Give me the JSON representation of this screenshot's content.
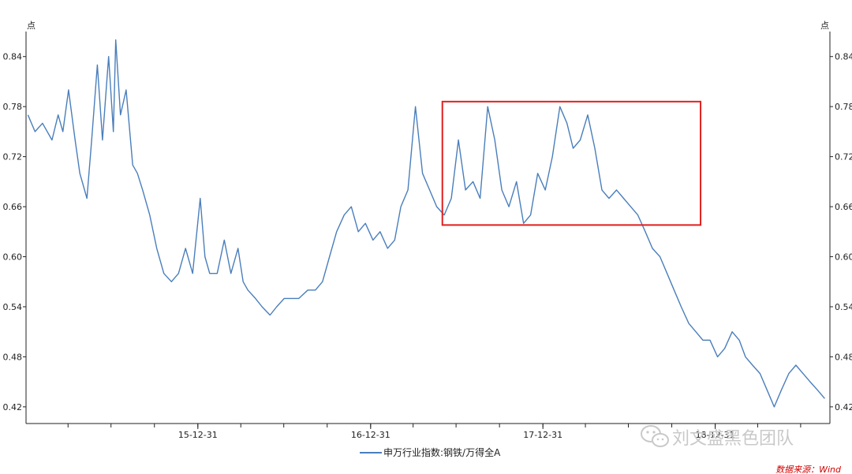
{
  "chart_data": {
    "type": "line",
    "y_unit_left": "点",
    "y_unit_right": "点",
    "yticks": [
      "0.84",
      "0.78",
      "0.72",
      "0.66",
      "0.60",
      "0.54",
      "0.48",
      "0.42"
    ],
    "ylim": [
      0.4,
      0.87
    ],
    "xticks": [
      "15-12-31",
      "16-12-31",
      "17-12-31",
      "18-12-31"
    ],
    "xlim": [
      "2015-01-01",
      "2019-08-31"
    ],
    "grid": false,
    "legend_position": "bottom-center",
    "series": [
      {
        "name": "申万行业指数:钢铁/万得全A",
        "color": "#4a7ebb",
        "x": [
          "2015-01-05",
          "2015-01-20",
          "2015-02-05",
          "2015-02-25",
          "2015-03-10",
          "2015-03-20",
          "2015-04-01",
          "2015-04-15",
          "2015-04-25",
          "2015-05-10",
          "2015-05-20",
          "2015-06-01",
          "2015-06-12",
          "2015-06-25",
          "2015-07-05",
          "2015-07-10",
          "2015-07-20",
          "2015-08-01",
          "2015-08-15",
          "2015-08-25",
          "2015-09-05",
          "2015-09-20",
          "2015-10-05",
          "2015-10-20",
          "2015-11-05",
          "2015-11-20",
          "2015-12-05",
          "2015-12-20",
          "2016-01-05",
          "2016-01-15",
          "2016-01-25",
          "2016-02-10",
          "2016-02-25",
          "2016-03-10",
          "2016-03-25",
          "2016-04-05",
          "2016-04-15",
          "2016-05-01",
          "2016-05-15",
          "2016-06-01",
          "2016-06-15",
          "2016-07-01",
          "2016-07-15",
          "2016-08-01",
          "2016-08-20",
          "2016-09-05",
          "2016-09-20",
          "2016-10-05",
          "2016-10-20",
          "2016-11-05",
          "2016-11-20",
          "2016-12-05",
          "2016-12-20",
          "2017-01-05",
          "2017-01-20",
          "2017-02-05",
          "2017-02-20",
          "2017-03-05",
          "2017-03-20",
          "2017-04-05",
          "2017-04-20",
          "2017-05-05",
          "2017-05-20",
          "2017-06-05",
          "2017-06-20",
          "2017-07-05",
          "2017-07-20",
          "2017-08-05",
          "2017-08-20",
          "2017-09-05",
          "2017-09-20",
          "2017-10-05",
          "2017-10-20",
          "2017-11-05",
          "2017-11-20",
          "2017-12-05",
          "2017-12-20",
          "2018-01-05",
          "2018-01-20",
          "2018-02-05",
          "2018-02-20",
          "2018-03-05",
          "2018-03-20",
          "2018-04-05",
          "2018-04-20",
          "2018-05-05",
          "2018-05-20",
          "2018-06-05",
          "2018-06-20",
          "2018-07-05",
          "2018-07-20",
          "2018-08-05",
          "2018-08-20",
          "2018-09-05",
          "2018-09-20",
          "2018-10-05",
          "2018-10-20",
          "2018-11-05",
          "2018-11-20",
          "2018-12-05",
          "2018-12-20",
          "2019-01-05",
          "2019-01-20",
          "2019-02-05",
          "2019-02-20",
          "2019-03-05",
          "2019-03-20",
          "2019-04-05",
          "2019-04-20",
          "2019-05-05",
          "2019-05-20",
          "2019-06-05",
          "2019-06-20",
          "2019-07-05",
          "2019-07-20",
          "2019-08-05",
          "2019-08-20"
        ],
        "y": [
          0.77,
          0.75,
          0.76,
          0.74,
          0.77,
          0.75,
          0.8,
          0.74,
          0.7,
          0.67,
          0.74,
          0.83,
          0.74,
          0.84,
          0.75,
          0.86,
          0.77,
          0.8,
          0.71,
          0.7,
          0.68,
          0.65,
          0.61,
          0.58,
          0.57,
          0.58,
          0.61,
          0.58,
          0.67,
          0.6,
          0.58,
          0.58,
          0.62,
          0.58,
          0.61,
          0.57,
          0.56,
          0.55,
          0.54,
          0.53,
          0.54,
          0.55,
          0.55,
          0.55,
          0.56,
          0.56,
          0.57,
          0.6,
          0.63,
          0.65,
          0.66,
          0.63,
          0.64,
          0.62,
          0.63,
          0.61,
          0.62,
          0.66,
          0.68,
          0.78,
          0.7,
          0.68,
          0.66,
          0.65,
          0.67,
          0.74,
          0.68,
          0.69,
          0.67,
          0.78,
          0.74,
          0.68,
          0.66,
          0.69,
          0.64,
          0.65,
          0.7,
          0.68,
          0.72,
          0.78,
          0.76,
          0.73,
          0.74,
          0.77,
          0.73,
          0.68,
          0.67,
          0.68,
          0.67,
          0.66,
          0.65,
          0.63,
          0.61,
          0.6,
          0.58,
          0.56,
          0.54,
          0.52,
          0.51,
          0.5,
          0.5,
          0.48,
          0.49,
          0.51,
          0.5,
          0.48,
          0.47,
          0.46,
          0.44,
          0.42,
          0.44,
          0.46,
          0.47,
          0.46,
          0.45,
          0.44,
          0.43
        ]
      }
    ],
    "annotation_box": {
      "x": [
        "2017-06-01",
        "2018-11-30"
      ],
      "y": [
        0.638,
        0.786
      ],
      "color": "#e02020"
    }
  },
  "watermark": {
    "text": "刘文盛黑色团队",
    "icon": "wechat-icon"
  },
  "source": "数据来源：Wind"
}
